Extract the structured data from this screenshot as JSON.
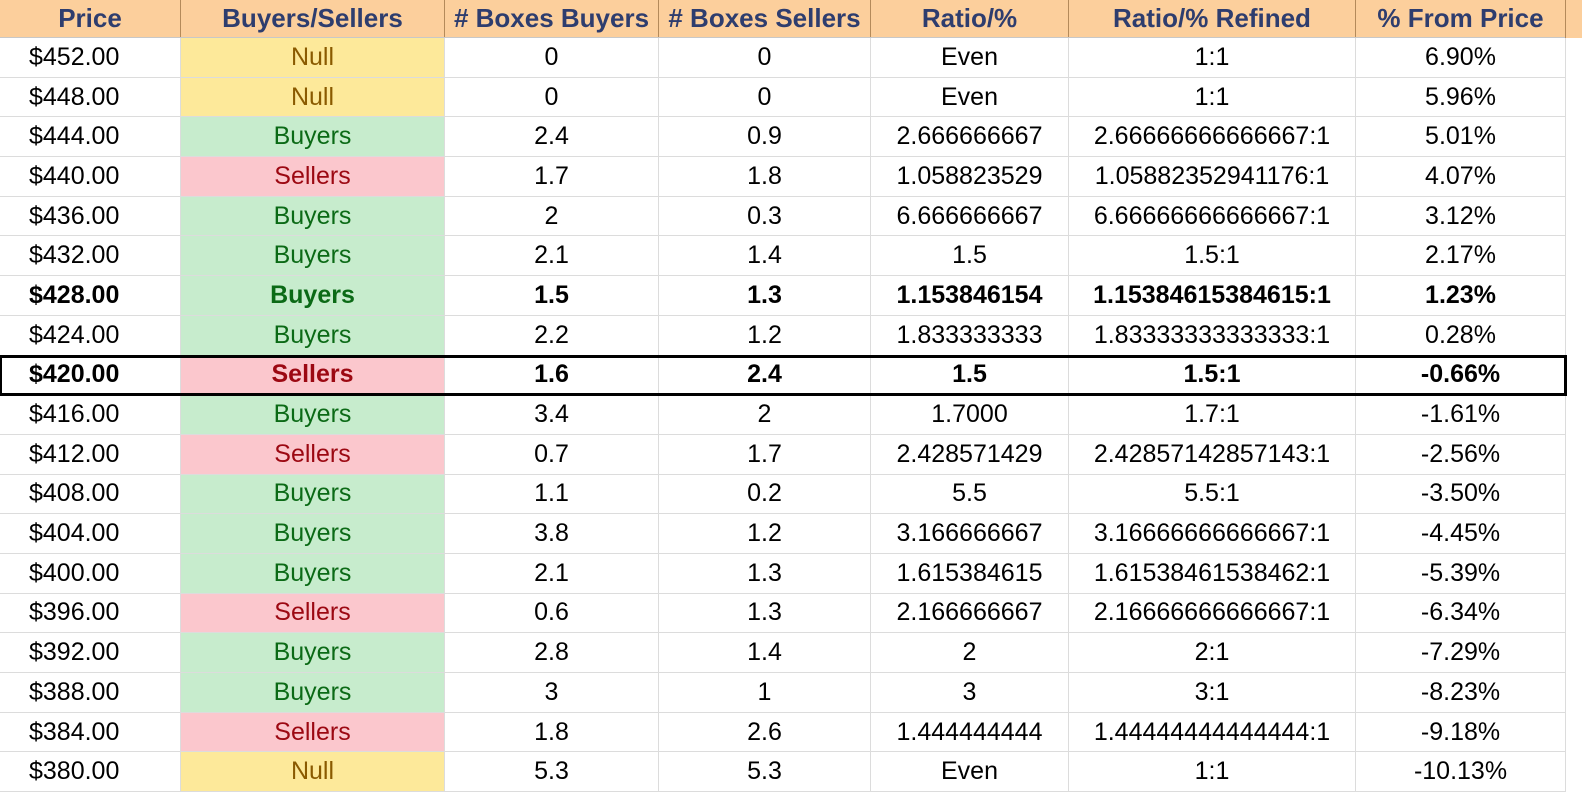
{
  "table": {
    "headers": [
      "Price",
      "Buyers/Sellers",
      "# Boxes Buyers",
      "# Boxes Sellers",
      "Ratio/%",
      "Ratio/% Refined",
      "% From Price"
    ],
    "rows": [
      {
        "price": "$452.00",
        "signal": "Null",
        "boxes_buyers": "0",
        "boxes_sellers": "0",
        "ratio": "Even",
        "ratio_refined": "1:1",
        "from_price": "6.90%"
      },
      {
        "price": "$448.00",
        "signal": "Null",
        "boxes_buyers": "0",
        "boxes_sellers": "0",
        "ratio": "Even",
        "ratio_refined": "1:1",
        "from_price": "5.96%"
      },
      {
        "price": "$444.00",
        "signal": "Buyers",
        "boxes_buyers": "2.4",
        "boxes_sellers": "0.9",
        "ratio": "2.666666667",
        "ratio_refined": "2.66666666666667:1",
        "from_price": "5.01%"
      },
      {
        "price": "$440.00",
        "signal": "Sellers",
        "boxes_buyers": "1.7",
        "boxes_sellers": "1.8",
        "ratio": "1.058823529",
        "ratio_refined": "1.05882352941176:1",
        "from_price": "4.07%"
      },
      {
        "price": "$436.00",
        "signal": "Buyers",
        "boxes_buyers": "2",
        "boxes_sellers": "0.3",
        "ratio": "6.666666667",
        "ratio_refined": "6.66666666666667:1",
        "from_price": "3.12%"
      },
      {
        "price": "$432.00",
        "signal": "Buyers",
        "boxes_buyers": "2.1",
        "boxes_sellers": "1.4",
        "ratio": "1.5",
        "ratio_refined": "1.5:1",
        "from_price": "2.17%"
      },
      {
        "price": "$428.00",
        "signal": "Buyers",
        "boxes_buyers": "1.5",
        "boxes_sellers": "1.3",
        "ratio": "1.153846154",
        "ratio_refined": "1.15384615384615:1",
        "from_price": "1.23%",
        "bold": true
      },
      {
        "price": "$424.00",
        "signal": "Buyers",
        "boxes_buyers": "2.2",
        "boxes_sellers": "1.2",
        "ratio": "1.833333333",
        "ratio_refined": "1.83333333333333:1",
        "from_price": "0.28%"
      },
      {
        "price": "$420.00",
        "signal": "Sellers",
        "boxes_buyers": "1.6",
        "boxes_sellers": "2.4",
        "ratio": "1.5",
        "ratio_refined": "1.5:1",
        "from_price": "-0.66%",
        "bold": true,
        "current": true
      },
      {
        "price": "$416.00",
        "signal": "Buyers",
        "boxes_buyers": "3.4",
        "boxes_sellers": "2",
        "ratio": "1.7000",
        "ratio_refined": "1.7:1",
        "from_price": "-1.61%"
      },
      {
        "price": "$412.00",
        "signal": "Sellers",
        "boxes_buyers": "0.7",
        "boxes_sellers": "1.7",
        "ratio": "2.428571429",
        "ratio_refined": "2.42857142857143:1",
        "from_price": "-2.56%"
      },
      {
        "price": "$408.00",
        "signal": "Buyers",
        "boxes_buyers": "1.1",
        "boxes_sellers": "0.2",
        "ratio": "5.5",
        "ratio_refined": "5.5:1",
        "from_price": "-3.50%"
      },
      {
        "price": "$404.00",
        "signal": "Buyers",
        "boxes_buyers": "3.8",
        "boxes_sellers": "1.2",
        "ratio": "3.166666667",
        "ratio_refined": "3.16666666666667:1",
        "from_price": "-4.45%"
      },
      {
        "price": "$400.00",
        "signal": "Buyers",
        "boxes_buyers": "2.1",
        "boxes_sellers": "1.3",
        "ratio": "1.615384615",
        "ratio_refined": "1.61538461538462:1",
        "from_price": "-5.39%"
      },
      {
        "price": "$396.00",
        "signal": "Sellers",
        "boxes_buyers": "0.6",
        "boxes_sellers": "1.3",
        "ratio": "2.166666667",
        "ratio_refined": "2.16666666666667:1",
        "from_price": "-6.34%"
      },
      {
        "price": "$392.00",
        "signal": "Buyers",
        "boxes_buyers": "2.8",
        "boxes_sellers": "1.4",
        "ratio": "2",
        "ratio_refined": "2:1",
        "from_price": "-7.29%"
      },
      {
        "price": "$388.00",
        "signal": "Buyers",
        "boxes_buyers": "3",
        "boxes_sellers": "1",
        "ratio": "3",
        "ratio_refined": "3:1",
        "from_price": "-8.23%"
      },
      {
        "price": "$384.00",
        "signal": "Sellers",
        "boxes_buyers": "1.8",
        "boxes_sellers": "2.6",
        "ratio": "1.444444444",
        "ratio_refined": "1.44444444444444:1",
        "from_price": "-9.18%"
      },
      {
        "price": "$380.00",
        "signal": "Null",
        "boxes_buyers": "5.3",
        "boxes_sellers": "5.3",
        "ratio": "Even",
        "ratio_refined": "1:1",
        "from_price": "-10.13%"
      }
    ]
  },
  "colors": {
    "header_bg": "#fccf9c",
    "header_text": "#2e3d6e",
    "null_bg": "#fde99a",
    "null_text": "#8a5a00",
    "buyers_bg": "#c7eccd",
    "buyers_text": "#0b6a16",
    "sellers_bg": "#fbc7cd",
    "sellers_text": "#9c0812"
  }
}
